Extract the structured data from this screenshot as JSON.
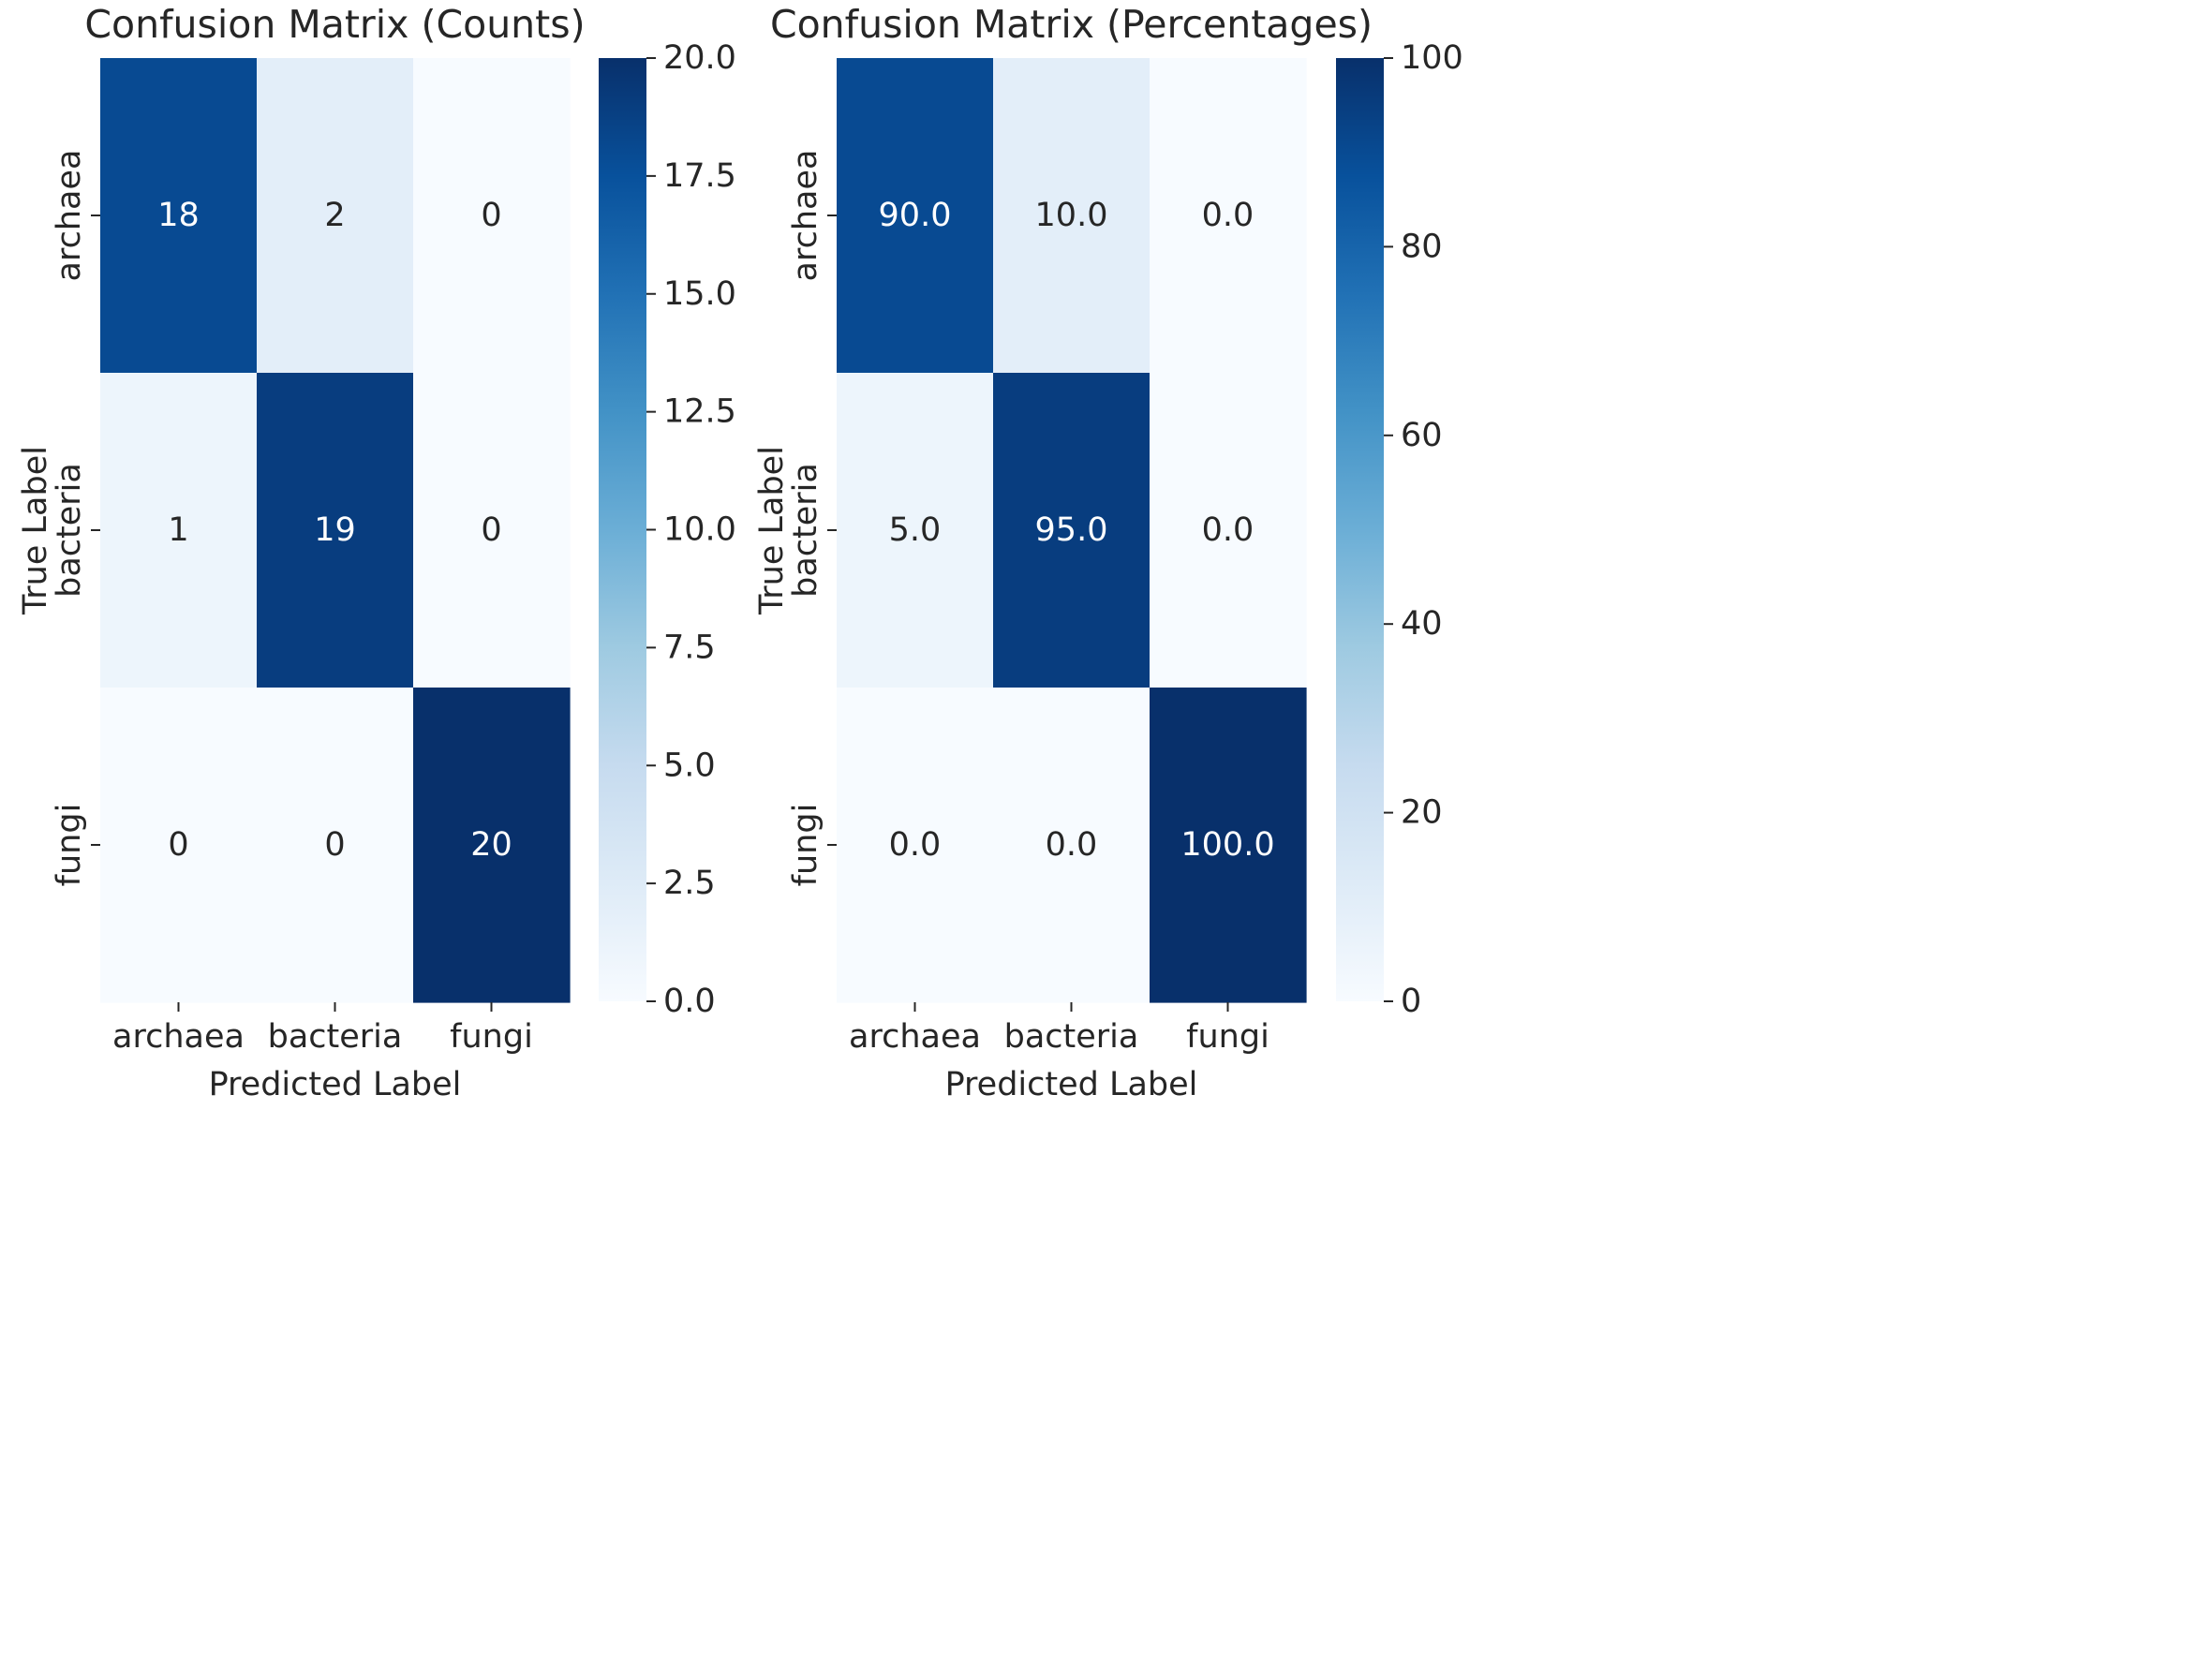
{
  "chart_data": [
    {
      "type": "heatmap",
      "title": "Confusion Matrix (Counts)",
      "xlabel": "Predicted Label",
      "ylabel": "True Label",
      "x_categories": [
        "archaea",
        "bacteria",
        "fungi"
      ],
      "y_categories": [
        "archaea",
        "bacteria",
        "fungi"
      ],
      "values": [
        [
          18,
          2,
          0
        ],
        [
          1,
          19,
          0
        ],
        [
          0,
          0,
          20
        ]
      ],
      "cell_labels": [
        [
          "18",
          "2",
          "0"
        ],
        [
          "1",
          "19",
          "0"
        ],
        [
          "0",
          "0",
          "20"
        ]
      ],
      "colormap": "Blues",
      "colorbar": {
        "range": [
          0,
          20
        ],
        "ticks": [
          0,
          2.5,
          5,
          7.5,
          10,
          12.5,
          15,
          17.5,
          20
        ],
        "tick_labels": [
          "0.0",
          "2.5",
          "5.0",
          "7.5",
          "10.0",
          "12.5",
          "15.0",
          "17.5",
          "20.0"
        ]
      }
    },
    {
      "type": "heatmap",
      "title": "Confusion Matrix (Percentages)",
      "xlabel": "Predicted Label",
      "ylabel": "True Label",
      "x_categories": [
        "archaea",
        "bacteria",
        "fungi"
      ],
      "y_categories": [
        "archaea",
        "bacteria",
        "fungi"
      ],
      "values": [
        [
          90.0,
          10.0,
          0.0
        ],
        [
          5.0,
          95.0,
          0.0
        ],
        [
          0.0,
          0.0,
          100.0
        ]
      ],
      "cell_labels": [
        [
          "90.0",
          "10.0",
          "0.0"
        ],
        [
          "5.0",
          "95.0",
          "0.0"
        ],
        [
          "0.0",
          "0.0",
          "100.0"
        ]
      ],
      "colormap": "Blues",
      "colorbar": {
        "range": [
          0,
          100
        ],
        "ticks": [
          0,
          20,
          40,
          60,
          80,
          100
        ],
        "tick_labels": [
          "0",
          "20",
          "40",
          "60",
          "80",
          "100"
        ]
      }
    }
  ]
}
